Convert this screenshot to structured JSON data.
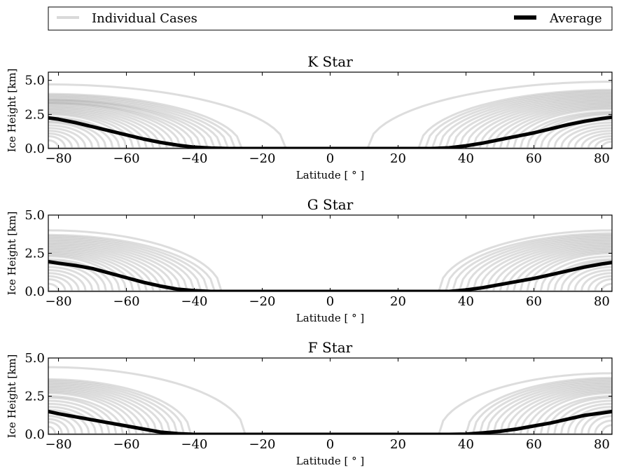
{
  "colors": {
    "individual": "#9e9e9e",
    "individual_legend": "#d9d9d9",
    "average": "#000000",
    "axis": "#000000",
    "background": "#ffffff"
  },
  "legend": {
    "individual_label": "Individual Cases",
    "average_label": "Average",
    "placement": "top, above all panels"
  },
  "chart_data": [
    {
      "type": "line",
      "title": "K Star",
      "xlabel": "Latitude [$^\\circ$]",
      "ylabel": "Ice Height [km]",
      "xlim": [
        -83,
        83
      ],
      "ylim": [
        0,
        5.6
      ],
      "xticks": [
        "−80",
        "−60",
        "−40",
        "−20",
        "0",
        "20",
        "40",
        "60",
        "80"
      ],
      "yticks": [
        "0.0",
        "2.5",
        "5.0"
      ],
      "grid": false,
      "series": [
        {
          "name": "Average",
          "x": [
            -83,
            -80,
            -75,
            -70,
            -65,
            -60,
            -55,
            -50,
            -45,
            -40,
            -35,
            -30,
            -20,
            0,
            20,
            30,
            35,
            40,
            45,
            50,
            55,
            60,
            65,
            70,
            75,
            80,
            83
          ],
          "values": [
            2.25,
            2.15,
            1.9,
            1.6,
            1.3,
            1.0,
            0.7,
            0.45,
            0.25,
            0.1,
            0.03,
            0.0,
            0.0,
            0.0,
            0.0,
            0.0,
            0.05,
            0.2,
            0.4,
            0.65,
            0.9,
            1.15,
            1.45,
            1.75,
            2.0,
            2.2,
            2.3
          ]
        }
      ],
      "individual_cases": {
        "south_edges": [
          -83,
          -80,
          -78,
          -76,
          -74,
          -72,
          -70,
          -68,
          -66,
          -64,
          -62,
          -60,
          -58,
          -56,
          -54,
          -52,
          -50,
          -48,
          -46,
          -44,
          -42,
          -40,
          -38,
          -36,
          -34,
          -32,
          -30,
          -28,
          -26,
          -13
        ],
        "south_heights": [
          0.3,
          0.6,
          0.9,
          1.1,
          1.3,
          1.5,
          1.7,
          1.9,
          2.0,
          2.2,
          2.3,
          2.5,
          2.6,
          2.7,
          2.8,
          2.9,
          3.0,
          3.1,
          3.2,
          3.3,
          3.35,
          3.4,
          3.5,
          3.55,
          3.6,
          3.7,
          3.8,
          3.9,
          4.0,
          4.7
        ],
        "north_edges": [
          11,
          26,
          28,
          30,
          32,
          34,
          36,
          38,
          40,
          42,
          44,
          46,
          48,
          50,
          52,
          54,
          56,
          58,
          60,
          62,
          64,
          66,
          68,
          70,
          72,
          74,
          76,
          78,
          80,
          83
        ],
        "north_heights": [
          4.9,
          4.3,
          4.2,
          4.1,
          4.0,
          3.9,
          3.8,
          3.7,
          3.6,
          3.5,
          3.4,
          3.3,
          3.2,
          3.1,
          3.0,
          2.9,
          2.7,
          2.6,
          2.5,
          2.3,
          2.1,
          1.9,
          1.7,
          1.5,
          1.3,
          1.1,
          0.9,
          0.7,
          0.5,
          0.3
        ]
      }
    },
    {
      "type": "line",
      "title": "G Star",
      "xlabel": "Latitude [$^\\circ$]",
      "ylabel": "Ice Height [km]",
      "xlim": [
        -83,
        83
      ],
      "ylim": [
        0,
        5.0
      ],
      "xticks": [
        "−80",
        "−60",
        "−40",
        "−20",
        "0",
        "20",
        "40",
        "60",
        "80"
      ],
      "yticks": [
        "0.0",
        "2.5",
        "5.0"
      ],
      "grid": false,
      "series": [
        {
          "name": "Average",
          "x": [
            -83,
            -80,
            -75,
            -70,
            -65,
            -60,
            -55,
            -50,
            -45,
            -40,
            -35,
            -30,
            -20,
            0,
            20,
            30,
            35,
            40,
            45,
            50,
            55,
            60,
            65,
            70,
            75,
            80,
            83
          ],
          "values": [
            1.95,
            1.85,
            1.7,
            1.5,
            1.2,
            0.9,
            0.6,
            0.35,
            0.15,
            0.05,
            0.0,
            0.0,
            0.0,
            0.0,
            0.0,
            0.0,
            0.0,
            0.1,
            0.25,
            0.45,
            0.65,
            0.85,
            1.1,
            1.35,
            1.6,
            1.8,
            1.9
          ]
        }
      ],
      "individual_cases": {
        "south_edges": [
          -83,
          -80,
          -78,
          -76,
          -74,
          -72,
          -70,
          -68,
          -66,
          -64,
          -62,
          -60,
          -58,
          -56,
          -54,
          -52,
          -50,
          -48,
          -46,
          -44,
          -42,
          -40,
          -38,
          -36,
          -34,
          -32
        ],
        "south_heights": [
          0.3,
          0.5,
          0.8,
          1.0,
          1.2,
          1.4,
          1.6,
          1.8,
          2.0,
          2.1,
          2.3,
          2.4,
          2.5,
          2.6,
          2.7,
          2.8,
          2.9,
          3.0,
          3.1,
          3.2,
          3.3,
          3.4,
          3.5,
          3.6,
          3.7,
          4.0
        ],
        "north_edges": [
          32,
          34,
          36,
          38,
          40,
          42,
          44,
          46,
          48,
          50,
          52,
          54,
          56,
          58,
          60,
          62,
          64,
          66,
          68,
          70,
          72,
          74,
          76,
          78,
          80,
          83
        ],
        "north_heights": [
          4.0,
          3.8,
          3.7,
          3.6,
          3.5,
          3.4,
          3.3,
          3.2,
          3.1,
          3.0,
          2.9,
          2.8,
          2.7,
          2.6,
          2.5,
          2.3,
          2.1,
          2.0,
          1.8,
          1.6,
          1.4,
          1.2,
          1.0,
          0.8,
          0.5,
          0.3
        ]
      }
    },
    {
      "type": "line",
      "title": "F Star",
      "xlabel": "Latitude [$^\\circ$]",
      "ylabel": "Ice Height [km]",
      "xlim": [
        -83,
        83
      ],
      "ylim": [
        0,
        5.0
      ],
      "xticks": [
        "−80",
        "−60",
        "−40",
        "−20",
        "0",
        "20",
        "40",
        "60",
        "80"
      ],
      "yticks": [
        "0.0",
        "2.5",
        "5.0"
      ],
      "grid": false,
      "series": [
        {
          "name": "Average",
          "x": [
            -83,
            -80,
            -75,
            -70,
            -65,
            -60,
            -55,
            -50,
            -45,
            -40,
            -35,
            -30,
            -20,
            0,
            20,
            30,
            35,
            40,
            45,
            50,
            55,
            60,
            65,
            70,
            75,
            80,
            83
          ],
          "values": [
            1.5,
            1.35,
            1.15,
            0.95,
            0.75,
            0.55,
            0.35,
            0.15,
            0.05,
            0.0,
            0.0,
            0.0,
            0.0,
            0.0,
            0.0,
            0.0,
            0.0,
            0.02,
            0.1,
            0.2,
            0.35,
            0.55,
            0.75,
            1.0,
            1.25,
            1.4,
            1.5
          ]
        }
      ],
      "individual_cases": {
        "south_edges": [
          -83,
          -81,
          -79,
          -77,
          -75,
          -73,
          -71,
          -69,
          -67,
          -65,
          -63,
          -61,
          -59,
          -57,
          -55,
          -53,
          -51,
          -49,
          -47,
          -45,
          -43,
          -41,
          -25
        ],
        "south_heights": [
          0.3,
          0.5,
          0.8,
          1.0,
          1.2,
          1.4,
          1.6,
          1.8,
          2.0,
          2.2,
          2.4,
          2.5,
          2.7,
          2.8,
          2.9,
          3.0,
          3.1,
          3.2,
          3.3,
          3.4,
          3.5,
          3.6,
          4.4
        ],
        "north_edges": [
          32,
          40,
          42,
          44,
          46,
          48,
          50,
          52,
          54,
          56,
          58,
          60,
          62,
          64,
          66,
          68,
          70,
          72,
          74,
          76,
          78,
          80,
          83
        ],
        "north_heights": [
          4.0,
          3.7,
          3.6,
          3.5,
          3.4,
          3.3,
          3.2,
          3.1,
          3.0,
          2.9,
          2.8,
          2.7,
          2.5,
          2.4,
          2.2,
          2.0,
          1.8,
          1.6,
          1.4,
          1.2,
          0.9,
          0.6,
          0.3
        ]
      }
    }
  ]
}
